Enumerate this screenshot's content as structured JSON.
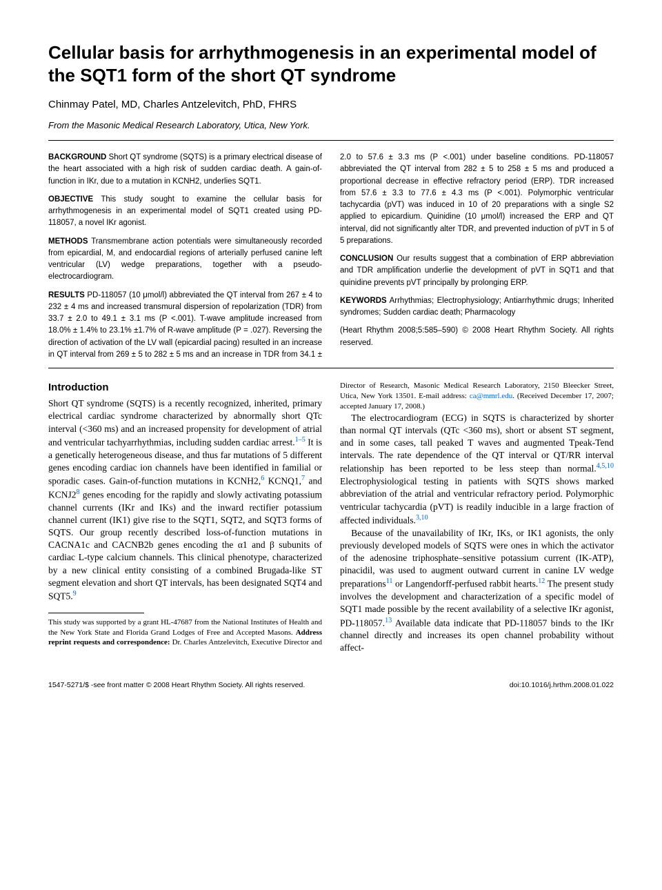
{
  "title": "Cellular basis for arrhythmogenesis in an experimental model of the SQT1 form of the short QT syndrome",
  "authors": "Chinmay Patel, MD, Charles Antzelevitch, PhD, FHRS",
  "affiliation": "From the Masonic Medical Research Laboratory, Utica, New York.",
  "abstract": {
    "background": {
      "label": "BACKGROUND",
      "text": "Short QT syndrome (SQTS) is a primary electrical disease of the heart associated with a high risk of sudden cardiac death. A gain-of-function in IKr, due to a mutation in KCNH2, underlies SQT1."
    },
    "objective": {
      "label": "OBJECTIVE",
      "text": "This study sought to examine the cellular basis for arrhythmogenesis in an experimental model of SQT1 created using PD-118057, a novel IKr agonist."
    },
    "methods": {
      "label": "METHODS",
      "text": "Transmembrane action potentials were simultaneously recorded from epicardial, M, and endocardial regions of arterially perfused canine left ventricular (LV) wedge preparations, together with a pseudo-electrocardiogram."
    },
    "results": {
      "label": "RESULTS",
      "text": "PD-118057 (10 μmol/l) abbreviated the QT interval from 267 ± 4 to 232 ± 4 ms and increased transmural dispersion of repolarization (TDR) from 33.7 ± 2.0 to 49.1 ± 3.1 ms (P <.001). T-wave amplitude increased from 18.0% ± 1.4% to 23.1% ±1.7% of R-wave amplitude (P = .027). Reversing the direction of activation of the LV wall (epicardial pacing) resulted in an increase in QT interval from 269 ± 5 to 282 ± 5 ms and an increase in TDR from 34.1 ± 2.0 to 57.6 ± 3.3 ms (P <.001) under baseline conditions. PD-118057 abbreviated the QT interval from 282 ± 5 to 258 ± 5 ms and produced a proportional decrease in effective refractory period (ERP). TDR increased from 57.6 ± 3.3 to 77.6 ± 4.3 ms (P <.001). Polymorphic ventricular tachycardia (pVT) was induced in 10 of 20 preparations with a single S2 applied to epicardium. Quinidine (10 μmol/l) increased the ERP and QT interval, did not significantly alter TDR, and prevented induction of pVT in 5 of 5 preparations."
    },
    "conclusion": {
      "label": "CONCLUSION",
      "text": "Our results suggest that a combination of ERP abbreviation and TDR amplification underlie the development of pVT in SQT1 and that quinidine prevents pVT principally by prolonging ERP."
    },
    "keywords": {
      "label": "KEYWORDS",
      "text": "Arrhythmias; Electrophysiology; Antiarrhythmic drugs; Inherited syndromes; Sudden cardiac death; Pharmacology"
    },
    "citation": "(Heart Rhythm 2008;5:585–590) © 2008 Heart Rhythm Society. All rights reserved."
  },
  "intro": {
    "heading": "Introduction",
    "p1a": "Short QT syndrome (SQTS) is a recently recognized, inherited, primary electrical cardiac syndrome characterized by abnormally short QTc interval (<360 ms) and an increased propensity for development of atrial and ventricular tachyarrhythmias, including sudden cardiac arrest.",
    "p1_ref1": "1–5",
    "p1b": " It is a genetically heterogeneous disease, and thus far mutations of 5 different genes encoding cardiac ion channels have been identified in familial or sporadic cases. Gain-of-function mutations in KCNH2,",
    "p1_ref2": "6",
    "p1c": " KCNQ1,",
    "p1_ref3": "7",
    "p1d": " and KCNJ2",
    "p1_ref4": "8",
    "p1e": " genes encoding for the rapidly and slowly activating potassium channel currents (IKr and IKs) and the inward rectifier potassium channel current (IK1) give rise to the SQT1, SQT2, and SQT3 forms of SQTS. Our group recently described loss-of-function mutations in CACNA1c and CACNB2b genes encoding the α1 and β subunits of cardiac L-type calcium channels. This clinical phenotype, characterized by a new clinical entity consisting of a combined Brugada-like ST segment elevation and short QT intervals, has been designated SQT4 and SQT5.",
    "p1_ref5": "9",
    "p2a": "The electrocardiogram (ECG) in SQTS is characterized by shorter than normal QT intervals (QTc <360 ms), short or absent ST segment, and in some cases, tall peaked T waves and augmented Tpeak-Tend intervals. The rate dependence of the QT interval or QT/RR interval relationship has been reported to be less steep than normal.",
    "p2_ref1": "4,5,10",
    "p2b": " Electrophysiological testing in patients with SQTS shows marked abbreviation of the atrial and ventricular refractory period. Polymorphic ventricular tachycardia (pVT) is readily inducible in a large fraction of affected individuals.",
    "p2_ref2": "3,10",
    "p3a": "Because of the unavailability of IKr, IKs, or IK1 agonists, the only previously developed models of SQTS were ones in which the activator of the adenosine triphosphate–sensitive potassium current (IK-ATP), pinacidil, was used to augment outward current in canine LV wedge preparations",
    "p3_ref1": "11",
    "p3b": " or Langendorff-perfused rabbit hearts.",
    "p3_ref2": "12",
    "p3c": " The present study involves the development and characterization of a specific model of SQT1 made possible by the recent availability of a selective IKr agonist, PD-118057.",
    "p3_ref3": "13",
    "p3d": " Available data indicate that PD-118057 binds to the IKr channel directly and increases its open channel probability without affect-"
  },
  "footnote": {
    "text_a": "This study was supported by a grant HL-47687 from the National Institutes of Health and the New York State and Florida Grand Lodges of Free and Accepted Masons. ",
    "bold": "Address reprint requests and correspondence:",
    "text_b": " Dr. Charles Antzelevitch, Executive Director and Director of Research, Masonic Medical Research Laboratory, 2150 Bleecker Street, Utica, New York 13501. E-mail address: ",
    "email": "ca@mmrl.edu",
    "text_c": ". (Received December 17, 2007; accepted January 17, 2008.)"
  },
  "footer": {
    "left": "1547-5271/$ -see front matter © 2008 Heart Rhythm Society. All rights reserved.",
    "right": "doi:10.1016/j.hrthm.2008.01.022"
  }
}
